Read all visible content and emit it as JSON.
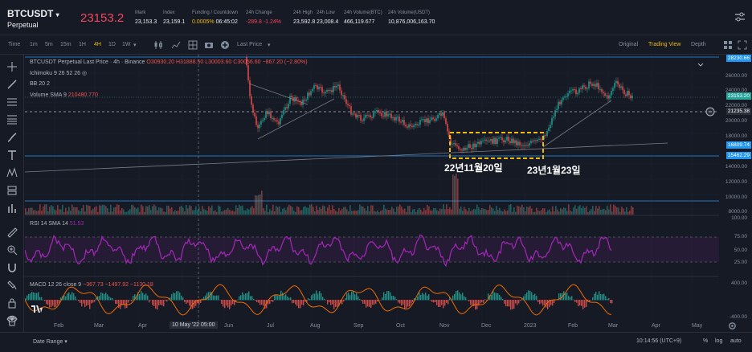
{
  "header": {
    "symbol": "BTCUSDT",
    "contract": "Perpetual",
    "last_price": "23153.2",
    "stats": [
      {
        "label": "Mark",
        "value": "23,153.3"
      },
      {
        "label": "Index",
        "value": "23,159.1"
      },
      {
        "label": "Funding / Countdown",
        "value": "0.0005%",
        "value2": "06:45:02"
      },
      {
        "label": "24h Change",
        "value": "-289.8 -1.24%"
      },
      {
        "label": "24h High",
        "value": "23,592.8"
      },
      {
        "label": "24h Low",
        "value": "23,008.4"
      },
      {
        "label": "24h Volume(BTC)",
        "value": "466,119.677"
      },
      {
        "label": "24h Volume(USDT)",
        "value": "10,876,006,163.70"
      }
    ]
  },
  "toolbar": {
    "timeframes": [
      "Time",
      "1m",
      "5m",
      "15m",
      "1H",
      "4H",
      "1D",
      "1W"
    ],
    "active": "4H",
    "last_price_btn": "Last Price",
    "views": [
      "Original",
      "Trading View",
      "Depth"
    ],
    "active_view": "Trading View"
  },
  "legend": {
    "title": "BTCUSDT Perpetual Last Price · 4h · Binance",
    "o": "O30930.20",
    "h": "H31888.50",
    "l": "L30003.60",
    "c": "C30056.60",
    "chg": "−867.20 (−2.80%)",
    "ichimoku": "Ichimoku 9 26 52 26",
    "bb": "BB 20 2",
    "vol": "Volume SMA 9",
    "vol_val": "210480.770",
    "rsi": "RSI 14 SMA 14",
    "rsi_val": "51.53",
    "macd": "MACD 12 26 close 9",
    "macd_vals": "−367.73 −1497.92 −1130.18"
  },
  "price_axis": [
    "28230.66",
    "26000.00",
    "24000.00",
    "22000.00",
    "20000.00",
    "18000.00",
    "14000.00",
    "12000.00",
    "10000.00",
    "8000.00"
  ],
  "price_tags": {
    "last": "23153.20",
    "dash": "21235.38",
    "l1": "16809.74",
    "l2": "15462.29"
  },
  "rsi_axis": [
    "100.00",
    "75.00",
    "50.00",
    "25.00"
  ],
  "macd_axis": [
    "400.00",
    "-400.00"
  ],
  "annotations": {
    "a1": "22년11월20일",
    "a2": "23년1월23일"
  },
  "months": [
    "Feb",
    "Mar",
    "Apr",
    "May",
    "Jun",
    "Jul",
    "Aug",
    "Sep",
    "Oct",
    "Nov",
    "Dec",
    "2023",
    "Feb",
    "Mar",
    "Apr",
    "May"
  ],
  "crosshair": {
    "date": "10 May '22",
    "time": "05:00"
  },
  "footer": {
    "range": "Date Range",
    "time": "10:14:56 (UTC+9)",
    "pct": "%",
    "log": "log",
    "auto": "auto"
  },
  "colors": {
    "up": "#26a69a",
    "down": "#ef5350",
    "rsi": "#9c27b0",
    "accent": "#f0b90b",
    "blue": "#2196f3"
  }
}
